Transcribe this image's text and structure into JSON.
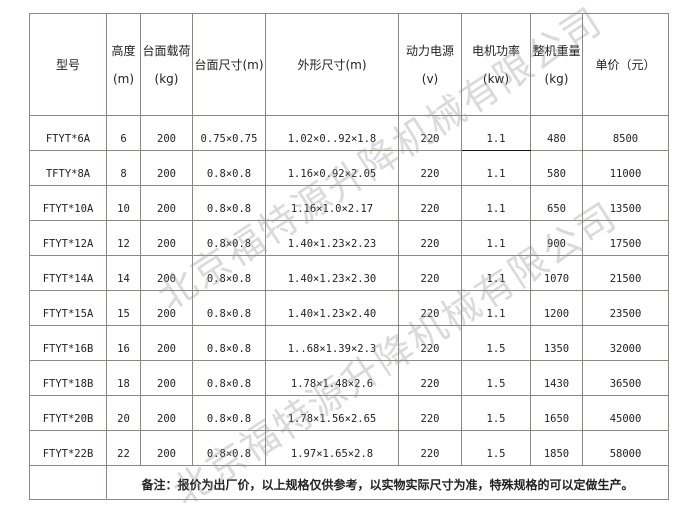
{
  "header": {
    "model": "型号",
    "height": [
      "高度",
      "(m)"
    ],
    "load": [
      "台面载荷",
      "(kg)"
    ],
    "platform_size": "台面尺寸(m)",
    "outer_size": "外形尺寸(m)",
    "power_source": [
      "动力电源",
      "(v)"
    ],
    "motor_power": [
      "电机功率",
      "(kw)"
    ],
    "weight": [
      "整机重量",
      "(kg)"
    ],
    "price": "单价（元）"
  },
  "rows": [
    {
      "model": "FTYT*6A",
      "height": "6",
      "load": "200",
      "platform": "0.75×0.75",
      "outer": "1.02×0..92×1.8",
      "voltage": "220",
      "power": "1.1",
      "weight": "480",
      "price": "8500"
    },
    {
      "model": "TFTY*8A",
      "height": "8",
      "load": "200",
      "platform": "0.8×0.8",
      "outer": "1.16×0.92×2.05",
      "voltage": "220",
      "power": "1.1",
      "weight": "580",
      "price": "11000"
    },
    {
      "model": "FTYT*10A",
      "height": "10",
      "load": "200",
      "platform": "0.8×0.8",
      "outer": "1.16×1.0×2.17",
      "voltage": "220",
      "power": "1.1",
      "weight": "650",
      "price": "13500"
    },
    {
      "model": "FTYT*12A",
      "height": "12",
      "load": "200",
      "platform": "0.8×0.8",
      "outer": "1.40×1.23×2.23",
      "voltage": "220",
      "power": "1.1",
      "weight": "900",
      "price": "17500"
    },
    {
      "model": "FTYT*14A",
      "height": "14",
      "load": "200",
      "platform": "0.8×0.8",
      "outer": "1.40×1.23×2.30",
      "voltage": "220",
      "power": "1.1",
      "weight": "1070",
      "price": "21500"
    },
    {
      "model": "FTYT*15A",
      "height": "15",
      "load": "200",
      "platform": "0.8×0.8",
      "outer": "1.40×1.23×2.40",
      "voltage": "220",
      "power": "1.1",
      "weight": "1200",
      "price": "23500"
    },
    {
      "model": "FTYT*16B",
      "height": "16",
      "load": "200",
      "platform": "0.8×0.8",
      "outer": "1..68×1.39×2.3",
      "voltage": "220",
      "power": "1.5",
      "weight": "1350",
      "price": "32000"
    },
    {
      "model": "FTYT*18B",
      "height": "18",
      "load": "200",
      "platform": "0.8×0.8",
      "outer": "1.78×1.48×2.6",
      "voltage": "220",
      "power": "1.5",
      "weight": "1430",
      "price": "36500"
    },
    {
      "model": "FTYT*20B",
      "height": "20",
      "load": "200",
      "platform": "0.8×0.8",
      "outer": "1.78×1.56×2.65",
      "voltage": "220",
      "power": "1.5",
      "weight": "1650",
      "price": "45000"
    },
    {
      "model": "FTYT*22B",
      "height": "22",
      "load": "200",
      "platform": "0.8×0.8",
      "outer": "1.97×1.65×2.8",
      "voltage": "220",
      "power": "1.5",
      "weight": "1850",
      "price": "58000"
    }
  ],
  "note": "备注：报价为出厂价，以上规格仅供参考，以实物实际尺寸为准，特殊规格的可以定做生产。",
  "watermark": "北京福特源升降机械有限公司"
}
